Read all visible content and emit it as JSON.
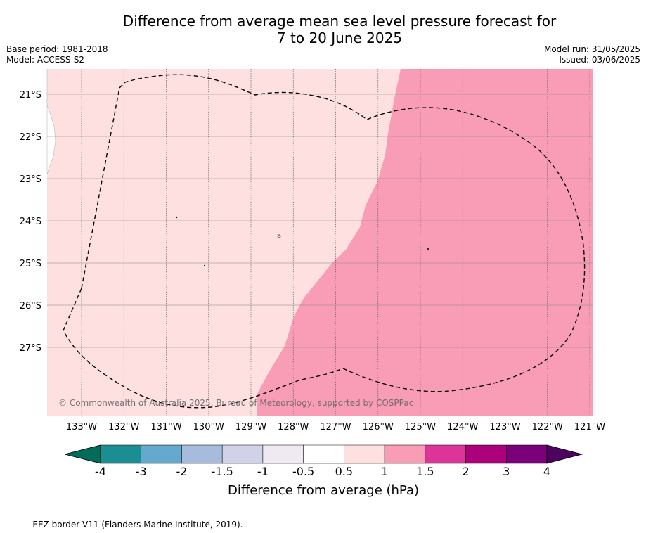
{
  "title": {
    "line1": "Difference from average mean sea level pressure forecast for",
    "line2": "7 to 20 June 2025"
  },
  "meta": {
    "base_period": "Base period: 1981-2018",
    "model": "Model: ACCESS-S2",
    "model_run": "Model run: 31/05/2025",
    "issued": "Issued: 03/06/2025"
  },
  "map": {
    "lat_labels": [
      "21°S",
      "22°S",
      "23°S",
      "24°S",
      "25°S",
      "26°S",
      "27°S"
    ],
    "lon_labels": [
      "133°W",
      "132°W",
      "131°W",
      "130°W",
      "129°W",
      "128°W",
      "127°W",
      "126°W",
      "125°W",
      "124°W",
      "123°W",
      "122°W",
      "121°W"
    ],
    "copyright": "© Commonwealth of Australia 2025, Bureau of Meteorology, supported by COSPPac",
    "colors": {
      "light_pink": "#fde0df",
      "medium_pink": "#f99db7",
      "gridline": "#555555"
    }
  },
  "colorbar": {
    "tick_labels": [
      "-4",
      "-3",
      "-2",
      "-1.5",
      "-1",
      "-0.5",
      "0.5",
      "1",
      "1.5",
      "2",
      "3",
      "4"
    ],
    "colors": [
      "#1b8e94",
      "#65a9cf",
      "#a7bbdc",
      "#d1d2e7",
      "#efe9f1",
      "#ffffff",
      "#fde0df",
      "#f99db7",
      "#dd349a",
      "#ad017c",
      "#7a0179"
    ],
    "extend_low_color": "#016c59",
    "extend_high_color": "#4d0360",
    "label": "Difference from average (hPa)"
  },
  "footer": "--  --  -- EEZ border V11 (Flanders Marine Institute, 2019)."
}
